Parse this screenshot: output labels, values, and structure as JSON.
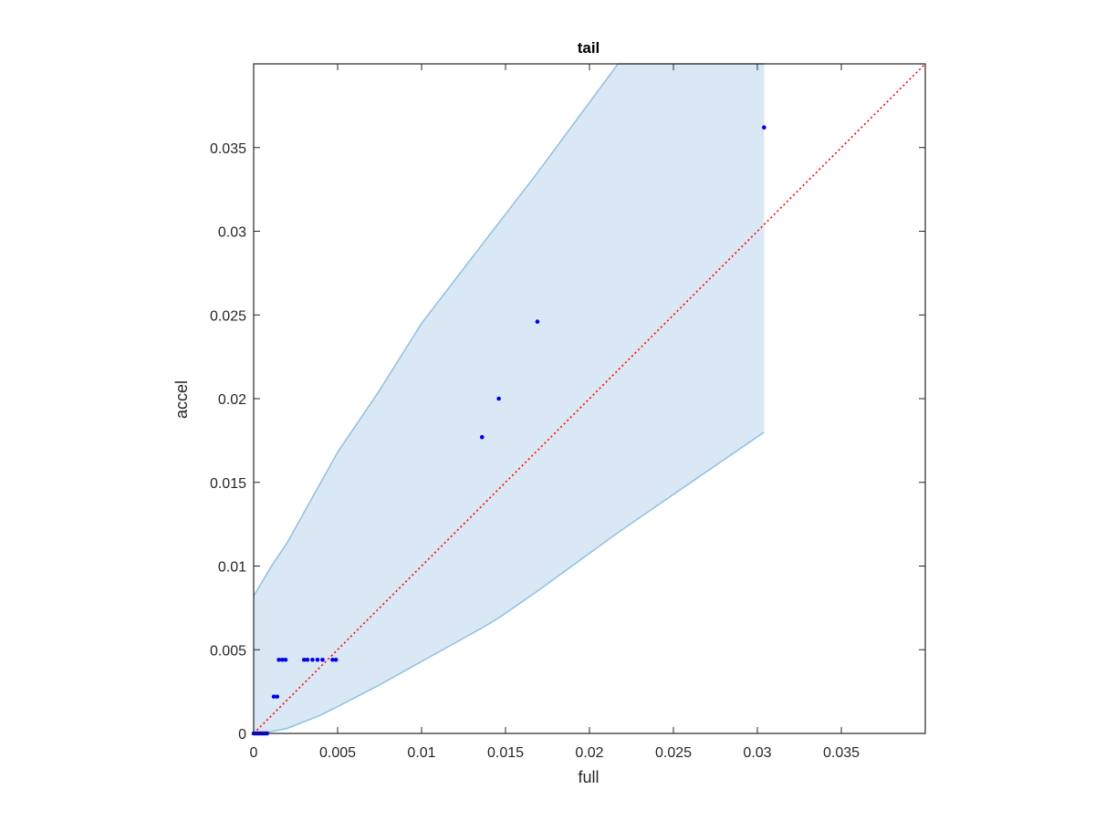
{
  "chart_data": {
    "type": "scatter",
    "title": "tail",
    "xlabel": "full",
    "ylabel": "accel",
    "xlim": [
      0,
      0.04
    ],
    "ylim": [
      0,
      0.04
    ],
    "xticks": [
      0,
      0.005,
      0.01,
      0.015,
      0.02,
      0.025,
      0.03,
      0.035
    ],
    "xtick_labels": [
      "0",
      "0.005",
      "0.01",
      "0.015",
      "0.02",
      "0.025",
      "0.03",
      "0.035"
    ],
    "yticks": [
      0,
      0.005,
      0.01,
      0.015,
      0.02,
      0.025,
      0.03,
      0.035
    ],
    "ytick_labels": [
      "0",
      "0.005",
      "0.01",
      "0.015",
      "0.02",
      "0.025",
      "0.03",
      "0.035"
    ],
    "grid": false,
    "colors": {
      "points": "#0000ee",
      "band_fill": "#d9e8f4",
      "band_edge": "#8fc0e3",
      "reference_line": "#ff0000",
      "axes": "#262626"
    },
    "points": {
      "x": [
        0,
        0.0001,
        0.0002,
        0.0003,
        0.0004,
        0.0005,
        0.0006,
        0.0007,
        0.0008,
        0.0012,
        0.0014,
        0.0015,
        0.0017,
        0.0019,
        0.003,
        0.0032,
        0.0035,
        0.0038,
        0.0041,
        0.0047,
        0.0049,
        0.0136,
        0.0146,
        0.0169,
        0.0304
      ],
      "y": [
        0,
        0,
        0,
        0,
        0,
        0,
        0,
        0,
        0,
        0.0022,
        0.0022,
        0.0044,
        0.0044,
        0.0044,
        0.0044,
        0.0044,
        0.0044,
        0.0044,
        0.0044,
        0.0044,
        0.0044,
        0.0177,
        0.02,
        0.0246,
        0.0362
      ]
    },
    "band": {
      "x": [
        0,
        0.001,
        0.002,
        0.003,
        0.004,
        0.005,
        0.0075,
        0.01,
        0.0136,
        0.0146,
        0.0169,
        0.0217,
        0.0304
      ],
      "upper": [
        0.0082,
        0.0099,
        0.0114,
        0.0132,
        0.015,
        0.0168,
        0.0205,
        0.0245,
        0.0292,
        0.0305,
        0.0335,
        0.04,
        0.04
      ],
      "lower": [
        0,
        0.0001,
        0.0003,
        0.0007,
        0.0011,
        0.0016,
        0.0029,
        0.0043,
        0.0063,
        0.0069,
        0.0085,
        0.012,
        0.018
      ]
    },
    "reference_line": {
      "x": [
        0,
        0.04
      ],
      "y": [
        0,
        0.04
      ],
      "style": "dotted"
    }
  }
}
